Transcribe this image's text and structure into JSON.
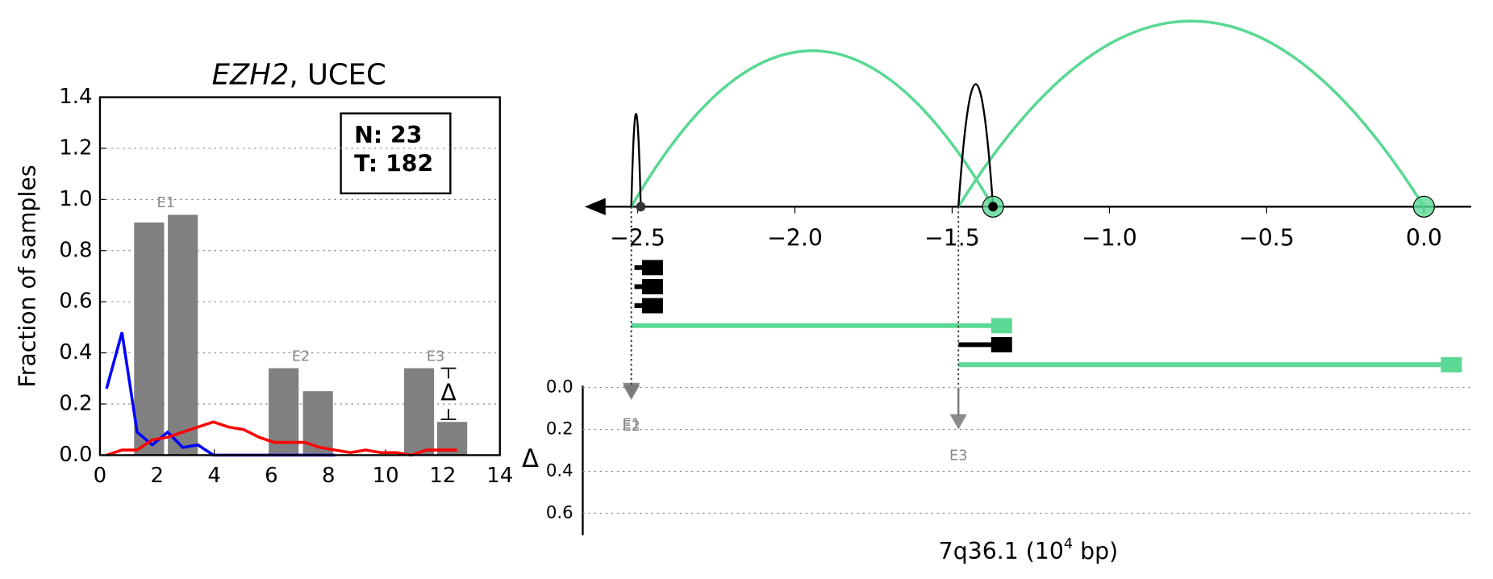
{
  "chart_data": [
    {
      "type": "bar",
      "title": [
        "EZH2",
        ", UCEC"
      ],
      "ylabel": "Fraction of samples",
      "xlim": [
        0,
        14
      ],
      "xticks": [
        0,
        2,
        4,
        6,
        8,
        10,
        12,
        14
      ],
      "ylim": [
        0,
        1.4
      ],
      "yticks": [
        {
          "value": 0,
          "label": "0.0"
        },
        0.2,
        0.4,
        0.6,
        0.8,
        {
          "value": 1,
          "label": "1.0"
        },
        1.2,
        1.4
      ],
      "grid": true,
      "x": [
        1.72,
        2.9,
        6.43,
        7.63,
        11.17,
        12.33
      ],
      "values": [
        0.91,
        0.94,
        0.34,
        0.25,
        0.34,
        0.13
      ],
      "color": "#808080",
      "group_labels": [
        "E1",
        "E2",
        "E3"
      ],
      "series": [
        {
          "color": "#0000ff",
          "x": [
            0.23,
            0.77,
            1.3,
            1.83,
            2.37,
            2.9,
            3.43,
            3.97,
            4.5,
            5.03,
            5.57,
            6.1,
            6.63,
            7.17,
            7.7,
            8.23
          ],
          "values": [
            0.26,
            0.48,
            0.09,
            0.04,
            0.09,
            0.03,
            0.04,
            0,
            0,
            0,
            0,
            0,
            0,
            0,
            0,
            0
          ]
        },
        {
          "color": "#ff0000",
          "x": [
            0.23,
            0.77,
            1.3,
            1.83,
            2.37,
            2.9,
            3.43,
            3.97,
            4.5,
            5.03,
            5.57,
            6.1,
            6.63,
            7.17,
            7.7,
            8.23,
            8.77,
            9.3,
            9.83,
            10.37,
            10.9,
            11.43,
            11.97,
            12.5
          ],
          "values": [
            0,
            0.02,
            0.02,
            0.06,
            0.07,
            0.09,
            0.11,
            0.13,
            0.11,
            0.1,
            0.07,
            0.05,
            0.05,
            0.05,
            0.03,
            0.02,
            0.01,
            0.02,
            0.01,
            0.01,
            0,
            0.02,
            0.02,
            0.02
          ]
        }
      ],
      "stats": [
        "N: 23",
        "T: 182"
      ],
      "delta": {
        "label": "Δ",
        "x": 12.2,
        "low": 0.14,
        "high": 0.34
      }
    },
    {
      "type": "arc",
      "xlabel": [
        "7q36.1 (10",
        "4",
        " bp)"
      ],
      "xlim": [
        -2.62,
        0.15
      ],
      "xticks": [
        {
          "value": -2.5,
          "label": "−2.5"
        },
        {
          "value": -2,
          "label": "−2.0"
        },
        {
          "value": -1.5,
          "label": "−1.5"
        },
        {
          "value": -1,
          "label": "−1.0"
        },
        {
          "value": -0.5,
          "label": "−0.5"
        },
        {
          "value": 0,
          "label": "0.0"
        }
      ],
      "arcs": [
        {
          "start": -2.52,
          "end": -1.37,
          "height": 0.84,
          "color": "#5ad894"
        },
        {
          "start": -1.48,
          "end": 0,
          "height": 1.0,
          "color": "#5ad894"
        },
        {
          "start": -2.52,
          "end": -2.49,
          "height": 0.5,
          "color": "#000000"
        },
        {
          "start": -1.48,
          "end": -1.37,
          "height": 0.66,
          "color": "#000000"
        }
      ],
      "anchors": [
        {
          "x": -2.49,
          "color": "#333333"
        },
        {
          "x": -1.37,
          "color": "#5ad894"
        },
        {
          "x": 0,
          "color": "#5ad894"
        }
      ],
      "tracks": [
        {
          "start": -2.51,
          "end": -2.48,
          "color": "#000000"
        },
        {
          "start": -2.51,
          "end": -2.48,
          "color": "#000000"
        },
        {
          "start": -2.51,
          "end": -2.48,
          "color": "#000000"
        },
        {
          "start": -2.52,
          "end": -1.37,
          "color": "#5ad894"
        },
        {
          "start": -1.48,
          "end": -1.37,
          "color": "#000000"
        },
        {
          "start": -1.48,
          "end": 0.06,
          "color": "#5ad894"
        }
      ],
      "ylabel": "Δ",
      "ylim": [
        0,
        0.7
      ],
      "yticks": [
        {
          "value": 0,
          "label": "0.0"
        },
        0.2,
        0.4,
        0.6
      ],
      "exons": [
        {
          "label": "E1",
          "x": -2.52,
          "delta": 0.05
        },
        {
          "label": "E2",
          "x": -2.52,
          "delta": 0.06
        },
        {
          "label": "E3",
          "x": -1.48,
          "delta": 0.2
        }
      ]
    }
  ]
}
